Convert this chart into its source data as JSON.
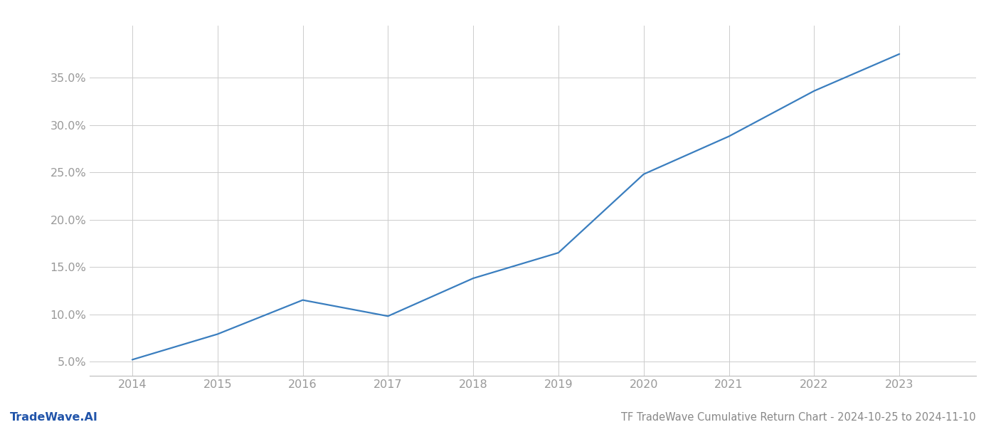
{
  "x_years": [
    2014,
    2015,
    2016,
    2017,
    2018,
    2019,
    2020,
    2021,
    2022,
    2023
  ],
  "y_values": [
    5.2,
    7.9,
    11.5,
    9.8,
    13.8,
    16.5,
    24.8,
    28.8,
    33.6,
    37.5
  ],
  "line_color": "#3a7ebf",
  "line_width": 1.6,
  "title": "TF TradeWave Cumulative Return Chart - 2024-10-25 to 2024-11-10",
  "watermark": "TradeWave.AI",
  "ytick_labels": [
    "5.0%",
    "10.0%",
    "15.0%",
    "20.0%",
    "25.0%",
    "30.0%",
    "35.0%"
  ],
  "ytick_values": [
    5.0,
    10.0,
    15.0,
    20.0,
    25.0,
    30.0,
    35.0
  ],
  "ylim": [
    3.5,
    40.5
  ],
  "xlim": [
    2013.5,
    2023.9
  ],
  "bg_color": "#ffffff",
  "grid_color": "#cccccc",
  "tick_color": "#999999",
  "title_color": "#888888",
  "watermark_color": "#2255aa",
  "title_fontsize": 10.5,
  "tick_fontsize": 11.5,
  "watermark_fontsize": 11.5
}
